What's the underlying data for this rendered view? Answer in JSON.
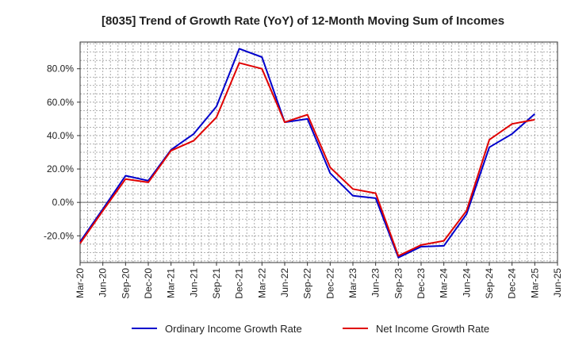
{
  "chart_data": {
    "type": "line",
    "title": "[8035]  Trend of Growth Rate (YoY) of 12-Month Moving Sum of Incomes",
    "xlabel": "",
    "ylabel": "",
    "x": [
      "Mar-20",
      "Jun-20",
      "Sep-20",
      "Dec-20",
      "Mar-21",
      "Jun-21",
      "Sep-21",
      "Dec-21",
      "Mar-22",
      "Jun-22",
      "Sep-22",
      "Dec-22",
      "Mar-23",
      "Jun-23",
      "Sep-23",
      "Dec-23",
      "Mar-24",
      "Jun-24",
      "Sep-24",
      "Dec-24",
      "Mar-25",
      "Jun-25"
    ],
    "x_tick_labels": [
      "Mar-20",
      "Jun-20",
      "Sep-20",
      "Dec-20",
      "Mar-21",
      "Jun-21",
      "Sep-21",
      "Dec-21",
      "Mar-22",
      "Jun-22",
      "Sep-22",
      "Dec-22",
      "Mar-23",
      "Jun-23",
      "Sep-23",
      "Dec-23",
      "Mar-24",
      "Jun-24",
      "Sep-24",
      "Dec-24",
      "Mar-25",
      "Jun-25"
    ],
    "y_tick_values": [
      -20,
      0,
      20,
      40,
      60,
      80
    ],
    "y_tick_labels": [
      "-20.0%",
      "0.0%",
      "20.0%",
      "40.0%",
      "60.0%",
      "80.0%"
    ],
    "ylim": [
      -36,
      96
    ],
    "grid": true,
    "legend_position": "bottom",
    "series": [
      {
        "name": "Ordinary Income Growth Rate",
        "color": "#0000cc",
        "values": [
          -23.5,
          -4,
          16,
          13,
          31.5,
          41,
          57.5,
          92,
          87,
          48,
          50,
          17.5,
          4,
          2.5,
          -33,
          -26.5,
          -26,
          -7,
          33,
          41,
          53,
          null
        ]
      },
      {
        "name": "Net Income Growth Rate",
        "color": "#e00000",
        "values": [
          -24.5,
          -5,
          14,
          12,
          31,
          37,
          51,
          83.5,
          80,
          48,
          52.5,
          21,
          8,
          5.5,
          -32,
          -25.5,
          -23,
          -5,
          37.5,
          47,
          49.5,
          null
        ]
      }
    ]
  }
}
